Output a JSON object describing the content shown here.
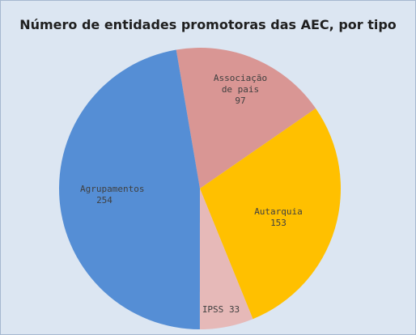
{
  "chart_data": {
    "type": "pie",
    "title": "Número de entidades promotoras das AEC, por tipo",
    "categories": [
      "Associação de pais",
      "Autarquia",
      "IPSS",
      "Agrupamentos"
    ],
    "values": [
      97,
      153,
      33,
      254
    ],
    "colors": [
      "#d99694",
      "#ffc000",
      "#e6b9b8",
      "#558ed5"
    ]
  }
}
